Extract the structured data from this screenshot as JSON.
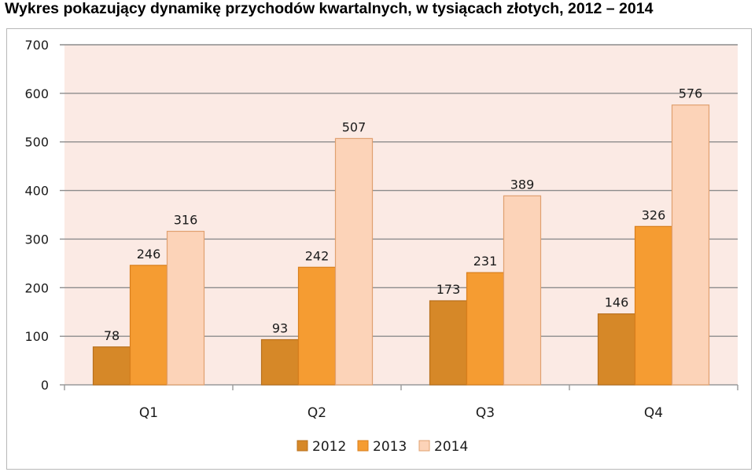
{
  "title": "Wykres pokazujący dynamikę przychodów kwartalnych, w tysiącach złotych, 2012 – 2014",
  "colors": {
    "plot_background": "#fbeae4",
    "grid": "#8c8c8c",
    "series": [
      "#d68828",
      "#f59c32",
      "#fcd3b8"
    ],
    "series_stroke": [
      "#b8701c",
      "#d97f1c",
      "#e0a070"
    ]
  },
  "chart_data": {
    "type": "bar",
    "title": "Wykres pokazujący dynamikę przychodów kwartalnych, w tysiącach złotych, 2012 – 2014",
    "xlabel": "",
    "ylabel": "",
    "categories": [
      "Q1",
      "Q2",
      "Q3",
      "Q4"
    ],
    "series": [
      {
        "name": "2012",
        "values": [
          78,
          93,
          173,
          146
        ]
      },
      {
        "name": "2013",
        "values": [
          246,
          242,
          231,
          326
        ]
      },
      {
        "name": "2014",
        "values": [
          316,
          507,
          389,
          576
        ]
      }
    ],
    "ylim": [
      0,
      700
    ],
    "yticks": [
      "0",
      "100",
      "200",
      "300",
      "400",
      "500",
      "600",
      "700"
    ],
    "grid": true,
    "legend_position": "bottom",
    "data_labels": true
  }
}
